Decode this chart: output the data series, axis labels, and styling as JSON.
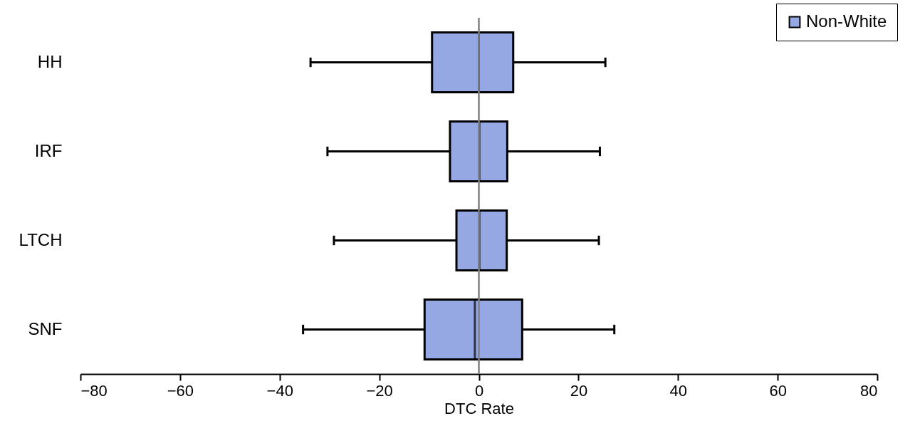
{
  "chart_data": {
    "type": "box",
    "orientation": "horizontal",
    "xlabel": "DTC Rate",
    "categories": [
      "HH",
      "IRF",
      "LTCH",
      "SNF"
    ],
    "series": [
      {
        "name": "Non-White",
        "color": "#96a8e4",
        "boxes": [
          {
            "low": -33.8,
            "q1": -9.4,
            "median": 0,
            "q3": 6.9,
            "high": 25.4
          },
          {
            "low": -30.4,
            "q1": -5.8,
            "median": 0.1,
            "q3": 5.7,
            "high": 24.3
          },
          {
            "low": -29.1,
            "q1": -4.5,
            "median": 0.1,
            "q3": 5.6,
            "high": 24.1
          },
          {
            "low": -35.3,
            "q1": -10.9,
            "median": -0.8,
            "q3": 8.7,
            "high": 27.2
          }
        ]
      }
    ],
    "xlim": [
      -80,
      80
    ],
    "xticks": [
      -80,
      -60,
      -40,
      -20,
      0,
      20,
      40,
      60,
      80
    ],
    "ref_lines": [
      {
        "axis": "x",
        "value": 0,
        "color": "#808080"
      }
    ],
    "legend": "top right",
    "grid": false
  }
}
